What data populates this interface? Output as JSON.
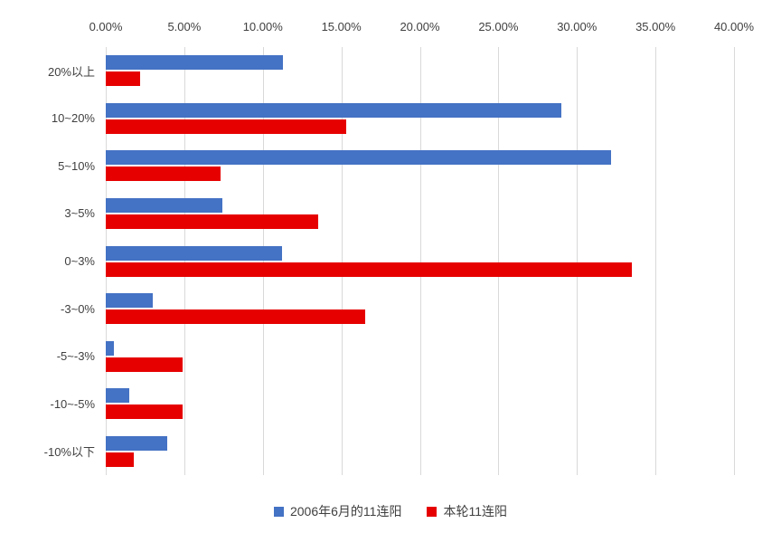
{
  "chart_data": {
    "type": "bar",
    "orientation": "horizontal",
    "title": "",
    "categories": [
      "20%以上",
      "10~20%",
      "5~10%",
      "3~5%",
      "0~3%",
      "-3~0%",
      "-5~-3%",
      "-10~-5%",
      "-10%以下"
    ],
    "series": [
      {
        "name": "2006年6月的11连阳",
        "color": "#4472c4",
        "values": [
          11.3,
          29.0,
          32.2,
          7.4,
          11.2,
          3.0,
          0.5,
          1.5,
          3.9
        ]
      },
      {
        "name": "本轮11连阳",
        "color": "#e60000",
        "values": [
          2.2,
          15.3,
          7.3,
          13.5,
          33.5,
          16.5,
          4.9,
          4.9,
          1.8
        ]
      }
    ],
    "x_axis": {
      "position": "top",
      "min": 0,
      "max": 40,
      "ticks": [
        "0.00%",
        "5.00%",
        "10.00%",
        "15.00%",
        "20.00%",
        "25.00%",
        "30.00%",
        "35.00%",
        "40.00%"
      ]
    },
    "grid": "vertical",
    "gridline_color": "#d9d9d9",
    "legend_position": "bottom"
  },
  "legend": {
    "items": [
      {
        "label": "2006年6月的11连阳",
        "color": "#4472c4"
      },
      {
        "label": "本轮11连阳",
        "color": "#e60000"
      }
    ]
  }
}
